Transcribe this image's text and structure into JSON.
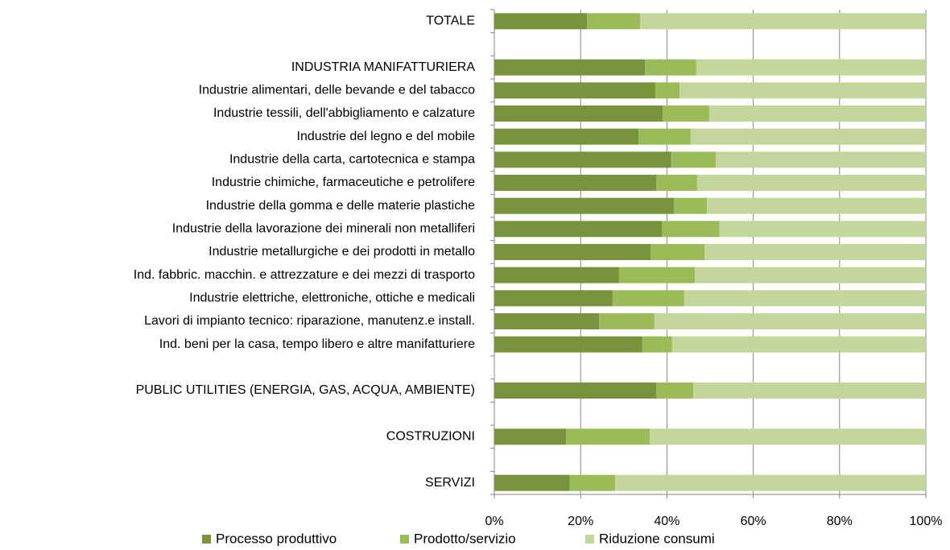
{
  "chart_data": {
    "type": "stacked_barh",
    "categories": [
      "TOTALE",
      null,
      "INDUSTRIA MANIFATTURIERA",
      "Industrie alimentari, delle bevande e del tabacco",
      "Industrie tessili, dell'abbigliamento e calzature",
      "Industrie del legno e del mobile",
      "Industrie della carta, cartotecnica e stampa",
      "Industrie chimiche, farmaceutiche e petrolifere",
      "Industrie della gomma e delle materie plastiche",
      "Industrie della lavorazione dei minerali non metalliferi",
      "Industrie metallurgiche e dei prodotti in metallo",
      "Ind. fabbric. macchin. e attrezzature e dei mezzi di trasporto",
      "Industrie elettriche, elettroniche, ottiche e medicali",
      "Lavori di impianto tecnico: riparazione, manutenz.e install.",
      "Ind. beni per la casa, tempo libero e altre manifatturiere",
      null,
      "PUBLIC UTILITIES (ENERGIA, GAS, ACQUA, AMBIENTE)",
      null,
      "COSTRUZIONI",
      null,
      "SERVIZI"
    ],
    "series": [
      {
        "name": "Processo produttivo",
        "color": "#77933c",
        "values": [
          21.5,
          null,
          34.9,
          37.3,
          39.0,
          33.4,
          41.0,
          37.5,
          41.6,
          38.8,
          36.2,
          28.9,
          27.4,
          24.3,
          34.3,
          null,
          37.5,
          null,
          16.6,
          null,
          17.5
        ]
      },
      {
        "name": "Prodotto/servizio",
        "color": "#9bbb59",
        "values": [
          12.3,
          null,
          11.9,
          5.6,
          10.8,
          12.1,
          10.3,
          9.5,
          7.7,
          13.4,
          12.5,
          17.6,
          16.6,
          12.8,
          6.9,
          null,
          8.6,
          null,
          19.4,
          null,
          10.5
        ]
      },
      {
        "name": "Riduzione consumi",
        "color": "#c3d69b",
        "values": [
          66.2,
          null,
          53.2,
          57.1,
          50.2,
          54.5,
          48.7,
          53.0,
          50.7,
          47.8,
          51.3,
          53.5,
          56.0,
          62.9,
          58.8,
          null,
          53.9,
          null,
          64.0,
          null,
          72.0
        ]
      }
    ],
    "xlim": [
      0,
      100
    ],
    "xticks": [
      {
        "value": 0,
        "label": "0%"
      },
      {
        "value": 20,
        "label": "20%"
      },
      {
        "value": 40,
        "label": "40%"
      },
      {
        "value": 60,
        "label": "60%"
      },
      {
        "value": 80,
        "label": "80%"
      },
      {
        "value": 100,
        "label": "100%"
      }
    ],
    "grid": true,
    "legend": "bottom"
  }
}
